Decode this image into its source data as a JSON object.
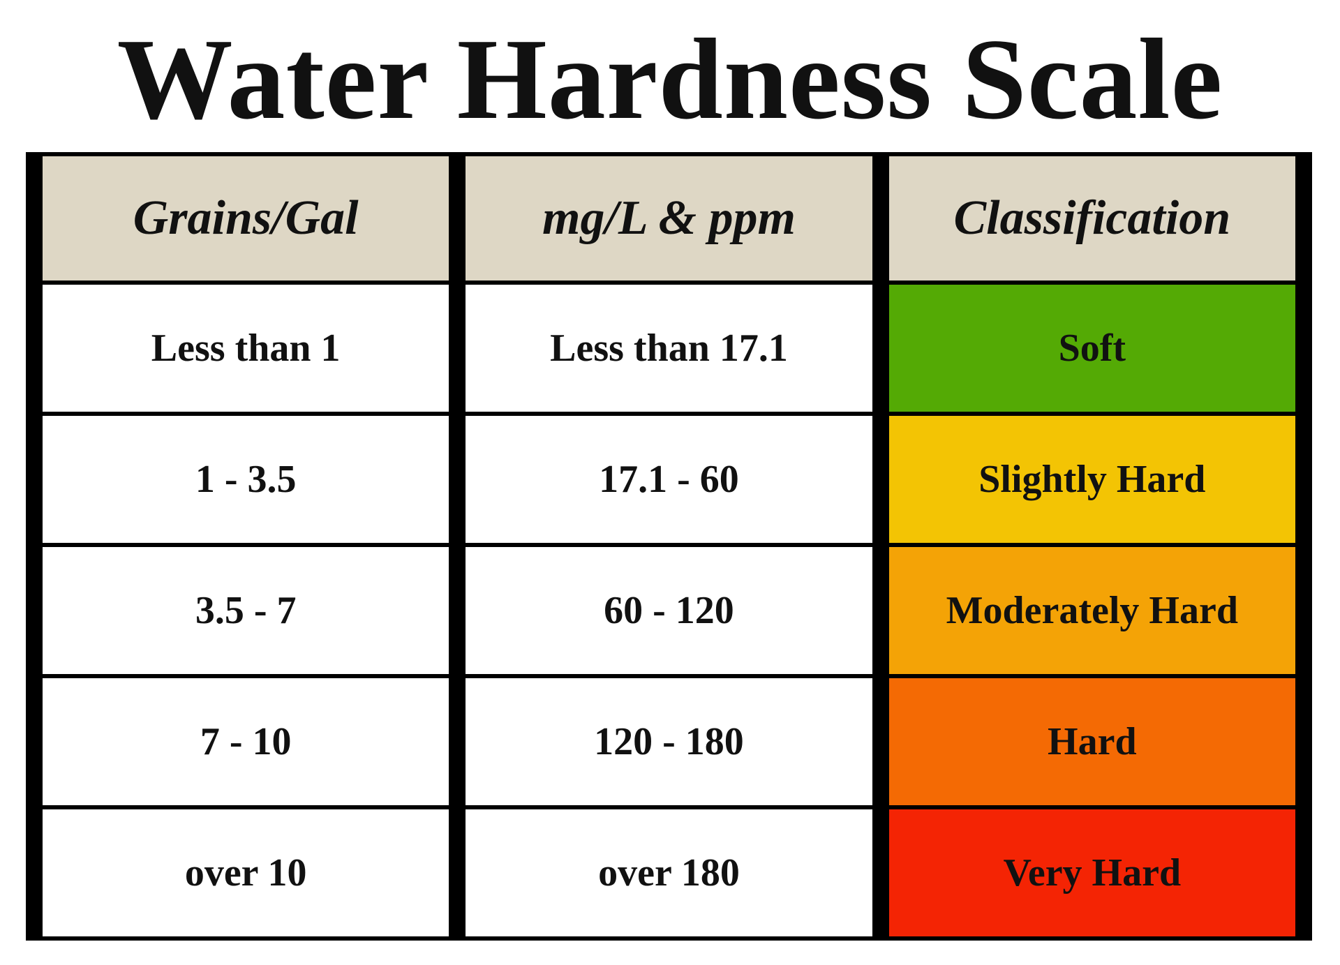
{
  "header": {
    "title": "Water Hardness Scale"
  },
  "table": {
    "headers": [
      "Grains/Gal",
      "mg/L & ppm",
      "Classification"
    ],
    "rows": [
      [
        "Less than 1",
        "Less than 17.1",
        "Soft"
      ],
      [
        "1 - 3.5",
        "17.1 - 60",
        "Slightly Hard"
      ],
      [
        "3.5 - 7",
        "60 - 120",
        "Moderately Hard"
      ],
      [
        "7 - 10",
        "120 - 180",
        "Hard"
      ],
      [
        "over 10",
        "over 180",
        "Very Hard"
      ]
    ]
  }
}
